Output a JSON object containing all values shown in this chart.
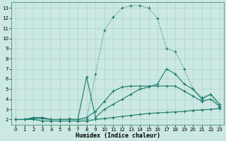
{
  "xlabel": "Humidex (Indice chaleur)",
  "background_color": "#cce8e3",
  "grid_color": "#aad4cc",
  "line_color": "#1a7a6a",
  "xlim": [
    -0.5,
    23.5
  ],
  "ylim": [
    1.5,
    13.6
  ],
  "xticks": [
    0,
    1,
    2,
    3,
    4,
    5,
    6,
    7,
    8,
    9,
    10,
    11,
    12,
    13,
    14,
    15,
    16,
    17,
    18,
    19,
    20,
    21,
    22,
    23
  ],
  "yticks": [
    2,
    3,
    4,
    5,
    6,
    7,
    8,
    9,
    10,
    11,
    12,
    13
  ],
  "line_main_x": [
    0,
    1,
    2,
    3,
    4,
    5,
    6,
    7,
    8,
    9,
    10,
    11,
    12,
    13,
    14,
    15,
    16,
    17,
    18,
    19,
    20,
    21,
    22,
    23
  ],
  "line_main_y": [
    2.0,
    2.0,
    2.0,
    2.1,
    2.0,
    2.0,
    2.1,
    2.0,
    2.0,
    6.5,
    10.8,
    12.1,
    13.0,
    13.25,
    13.25,
    13.0,
    12.0,
    9.0,
    8.7,
    7.0,
    5.0,
    4.2,
    4.5,
    3.2
  ],
  "line_spike_x": [
    0,
    1,
    2,
    3,
    4,
    5,
    6,
    7,
    8,
    9,
    10,
    11,
    12,
    13,
    14,
    15,
    16,
    17,
    18,
    19,
    20,
    21,
    22,
    23
  ],
  "line_spike_y": [
    2.0,
    2.0,
    2.1,
    2.1,
    2.0,
    2.0,
    2.0,
    2.0,
    6.2,
    2.2,
    3.0,
    3.5,
    4.0,
    4.5,
    5.0,
    5.2,
    5.5,
    7.0,
    6.5,
    5.5,
    5.0,
    4.0,
    4.5,
    3.5
  ],
  "line_med_x": [
    0,
    1,
    2,
    3,
    4,
    5,
    6,
    7,
    8,
    9,
    10,
    11,
    12,
    13,
    14,
    15,
    16,
    17,
    18,
    19,
    20,
    21,
    22,
    23
  ],
  "line_med_y": [
    2.0,
    2.0,
    2.2,
    2.2,
    2.0,
    2.0,
    2.0,
    2.0,
    2.2,
    2.8,
    3.8,
    4.8,
    5.2,
    5.3,
    5.3,
    5.3,
    5.3,
    5.3,
    5.3,
    4.8,
    4.3,
    3.8,
    4.0,
    3.3
  ],
  "line_flat_x": [
    0,
    1,
    2,
    3,
    4,
    5,
    6,
    7,
    8,
    9,
    10,
    11,
    12,
    13,
    14,
    15,
    16,
    17,
    18,
    19,
    20,
    21,
    22,
    23
  ],
  "line_flat_y": [
    2.0,
    2.0,
    2.0,
    1.85,
    1.85,
    1.85,
    1.85,
    1.85,
    1.85,
    2.0,
    2.1,
    2.2,
    2.3,
    2.4,
    2.5,
    2.6,
    2.65,
    2.7,
    2.75,
    2.8,
    2.9,
    2.95,
    3.0,
    3.1
  ]
}
